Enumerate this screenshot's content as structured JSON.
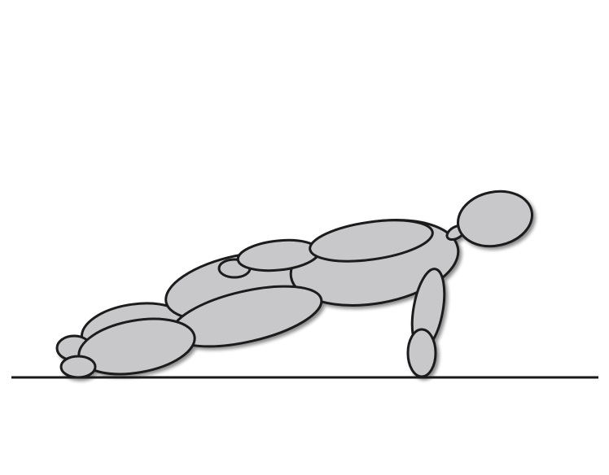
{
  "scene": {
    "subject": "plank",
    "colors": {
      "background": "#ffffff",
      "body_fill": "#c8c8ca",
      "outline": "#1a1a1a",
      "ground_line": "#1a1a1a",
      "shadow": "#8a8a8a"
    }
  }
}
